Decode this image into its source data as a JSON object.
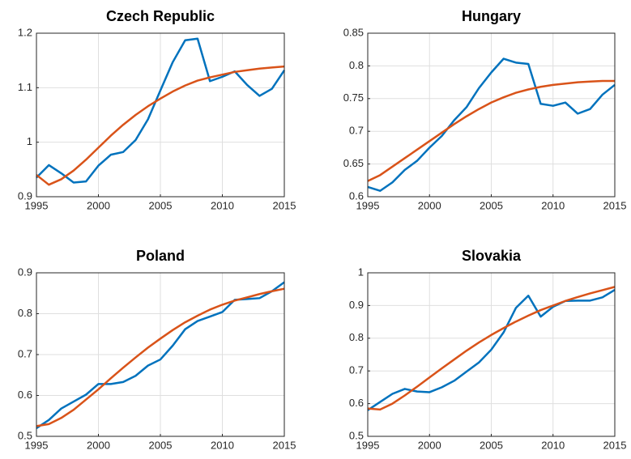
{
  "chart_data": [
    {
      "type": "line",
      "title": "Czech Republic",
      "x": [
        1995,
        1996,
        1997,
        1998,
        1999,
        2000,
        2001,
        2002,
        2003,
        2004,
        2005,
        2006,
        2007,
        2008,
        2009,
        2010,
        2011,
        2012,
        2013,
        2014,
        2015
      ],
      "series": [
        {
          "color": "#0072bd",
          "values": [
            0.935,
            0.958,
            0.943,
            0.926,
            0.928,
            0.957,
            0.977,
            0.982,
            1.004,
            1.042,
            1.095,
            1.147,
            1.187,
            1.19,
            1.112,
            1.12,
            1.13,
            1.105,
            1.085,
            1.098,
            1.132
          ]
        },
        {
          "color": "#d95319",
          "values": [
            0.94,
            0.922,
            0.932,
            0.948,
            0.968,
            0.99,
            1.012,
            1.032,
            1.05,
            1.066,
            1.08,
            1.093,
            1.104,
            1.113,
            1.119,
            1.124,
            1.129,
            1.132,
            1.135,
            1.137,
            1.139
          ]
        }
      ],
      "xlim": [
        1995,
        2015
      ],
      "xticks": [
        1995,
        2000,
        2005,
        2010,
        2015
      ],
      "ylim": [
        0.9,
        1.2
      ],
      "yticks": [
        0.9,
        1,
        1.1,
        1.2
      ],
      "grid": true
    },
    {
      "type": "line",
      "title": "Hungary",
      "x": [
        1995,
        1996,
        1997,
        1998,
        1999,
        2000,
        2001,
        2002,
        2003,
        2004,
        2005,
        2006,
        2007,
        2008,
        2009,
        2010,
        2011,
        2012,
        2013,
        2014,
        2015
      ],
      "series": [
        {
          "color": "#0072bd",
          "values": [
            0.615,
            0.609,
            0.622,
            0.641,
            0.655,
            0.675,
            0.693,
            0.717,
            0.737,
            0.766,
            0.79,
            0.811,
            0.805,
            0.803,
            0.742,
            0.739,
            0.744,
            0.727,
            0.734,
            0.756,
            0.771
          ]
        },
        {
          "color": "#d95319",
          "values": [
            0.624,
            0.633,
            0.646,
            0.659,
            0.672,
            0.685,
            0.698,
            0.711,
            0.723,
            0.734,
            0.744,
            0.752,
            0.759,
            0.764,
            0.768,
            0.771,
            0.773,
            0.775,
            0.776,
            0.777,
            0.777
          ]
        }
      ],
      "xlim": [
        1995,
        2015
      ],
      "xticks": [
        1995,
        2000,
        2005,
        2010,
        2015
      ],
      "ylim": [
        0.6,
        0.85
      ],
      "yticks": [
        0.6,
        0.65,
        0.7,
        0.75,
        0.8,
        0.85
      ],
      "grid": true
    },
    {
      "type": "line",
      "title": "Poland",
      "x": [
        1995,
        1996,
        1997,
        1998,
        1999,
        2000,
        2001,
        2002,
        2003,
        2004,
        2005,
        2006,
        2007,
        2008,
        2009,
        2010,
        2011,
        2012,
        2013,
        2014,
        2015
      ],
      "series": [
        {
          "color": "#0072bd",
          "values": [
            0.52,
            0.54,
            0.568,
            0.585,
            0.602,
            0.628,
            0.628,
            0.633,
            0.648,
            0.673,
            0.688,
            0.722,
            0.762,
            0.782,
            0.793,
            0.804,
            0.834,
            0.836,
            0.838,
            0.855,
            0.877
          ]
        },
        {
          "color": "#d95319",
          "values": [
            0.525,
            0.53,
            0.545,
            0.565,
            0.59,
            0.615,
            0.642,
            0.668,
            0.693,
            0.717,
            0.739,
            0.76,
            0.779,
            0.795,
            0.81,
            0.822,
            0.832,
            0.84,
            0.848,
            0.855,
            0.861
          ]
        }
      ],
      "xlim": [
        1995,
        2015
      ],
      "xticks": [
        1995,
        2000,
        2005,
        2010,
        2015
      ],
      "ylim": [
        0.5,
        0.9
      ],
      "yticks": [
        0.5,
        0.6,
        0.7,
        0.8,
        0.9
      ],
      "grid": true
    },
    {
      "type": "line",
      "title": "Slovakia",
      "x": [
        1995,
        1996,
        1997,
        1998,
        1999,
        2000,
        2001,
        2002,
        2003,
        2004,
        2005,
        2006,
        2007,
        2008,
        2009,
        2010,
        2011,
        2012,
        2013,
        2014,
        2015
      ],
      "series": [
        {
          "color": "#0072bd",
          "values": [
            0.58,
            0.605,
            0.63,
            0.645,
            0.637,
            0.635,
            0.65,
            0.67,
            0.698,
            0.726,
            0.765,
            0.818,
            0.893,
            0.93,
            0.866,
            0.896,
            0.914,
            0.915,
            0.915,
            0.925,
            0.948
          ]
        },
        {
          "color": "#d95319",
          "values": [
            0.585,
            0.582,
            0.6,
            0.625,
            0.652,
            0.68,
            0.708,
            0.735,
            0.762,
            0.787,
            0.81,
            0.831,
            0.851,
            0.869,
            0.886,
            0.9,
            0.914,
            0.926,
            0.937,
            0.947,
            0.957
          ]
        }
      ],
      "xlim": [
        1995,
        2015
      ],
      "xticks": [
        1995,
        2000,
        2005,
        2010,
        2015
      ],
      "ylim": [
        0.5,
        1
      ],
      "yticks": [
        0.5,
        0.6,
        0.7,
        0.8,
        0.9,
        1
      ],
      "grid": true
    }
  ]
}
